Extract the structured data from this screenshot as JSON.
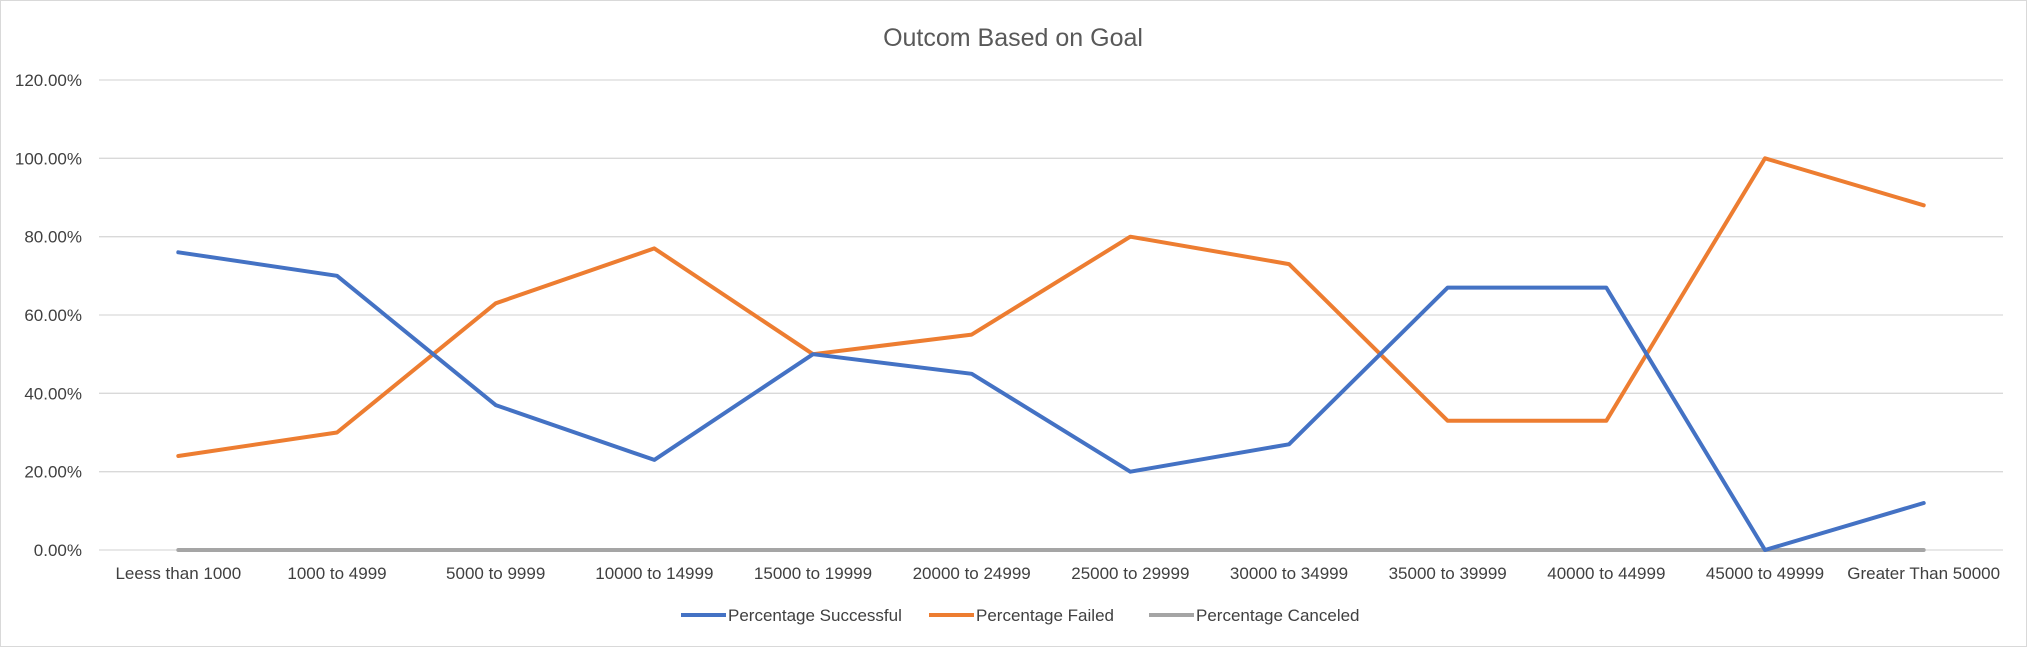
{
  "chart_data": {
    "type": "line",
    "title": "Outcom Based on Goal",
    "xlabel": "",
    "ylabel": "",
    "categories": [
      "Leess than 1000",
      "1000 to 4999",
      "5000 to 9999",
      "10000 to 14999",
      "15000 to 19999",
      "20000 to 24999",
      "25000 to 29999",
      "30000 to 34999",
      "35000 to 39999",
      "40000 to 44999",
      "45000 to 49999",
      "Greater Than 50000"
    ],
    "ylim": [
      0,
      1.2
    ],
    "yticks": [
      0,
      0.2,
      0.4,
      0.6,
      0.8,
      1.0,
      1.2
    ],
    "ytick_labels": [
      "0.00%",
      "20.00%",
      "40.00%",
      "60.00%",
      "80.00%",
      "100.00%",
      "120.00%"
    ],
    "grid": true,
    "legend_position": "bottom",
    "series": [
      {
        "name": "Percentage Successful",
        "color": "#4472C4",
        "values": [
          0.76,
          0.7,
          0.37,
          0.23,
          0.5,
          0.45,
          0.2,
          0.27,
          0.67,
          0.67,
          0.0,
          0.12
        ]
      },
      {
        "name": "Percentage Failed",
        "color": "#ED7D31",
        "values": [
          0.24,
          0.3,
          0.63,
          0.77,
          0.5,
          0.55,
          0.8,
          0.73,
          0.33,
          0.33,
          1.0,
          0.88
        ]
      },
      {
        "name": "Percentage Canceled",
        "color": "#A5A5A5",
        "values": [
          0,
          0,
          0,
          0,
          0,
          0,
          0,
          0,
          0,
          0,
          0,
          0
        ]
      }
    ]
  }
}
